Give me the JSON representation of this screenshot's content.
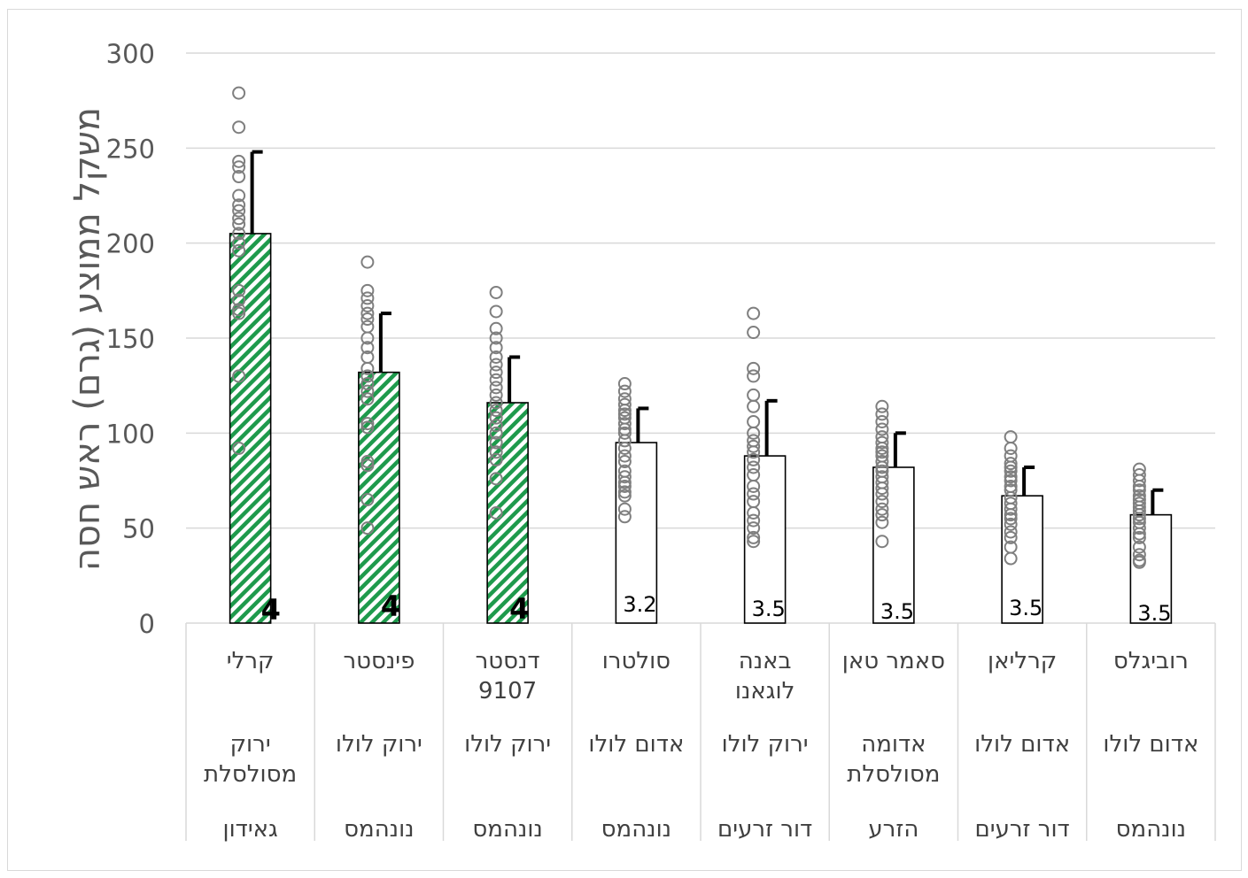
{
  "chart_data": {
    "type": "bar",
    "ylabel": "משקל ממוצע (גרם) ראש חסה",
    "xlabel": "",
    "ylim": [
      0,
      300
    ],
    "yticks": [
      0,
      50,
      100,
      150,
      200,
      250,
      300
    ],
    "grid": true,
    "categories": [
      {
        "name": [
          "קרלי"
        ],
        "type": [
          "ירוק",
          "מסולסלת"
        ],
        "source": "גאידון"
      },
      {
        "name": [
          "פינסטר"
        ],
        "type": [
          "ירוק לולו"
        ],
        "source": "נונהמס"
      },
      {
        "name": [
          "דנסטר",
          "9107"
        ],
        "type": [
          "ירוק לולו"
        ],
        "source": "נונהמס"
      },
      {
        "name": [
          "סולטרו"
        ],
        "type": [
          "אדום לולו"
        ],
        "source": "נונהמס"
      },
      {
        "name": [
          "באנה",
          "לוגאנו"
        ],
        "type": [
          "ירוק לולו"
        ],
        "source": "דור זרעים"
      },
      {
        "name": [
          "סאמר טאן"
        ],
        "type": [
          "אדומה",
          "מסולסלת"
        ],
        "source": "הזרע"
      },
      {
        "name": [
          "קרליאן"
        ],
        "type": [
          "אדום לולו"
        ],
        "source": "דור זרעים"
      },
      {
        "name": [
          "רוביגלס"
        ],
        "type": [
          "אדום לולו"
        ],
        "source": "נונהמס"
      }
    ],
    "series": [
      {
        "values": [
          205,
          132,
          116,
          95,
          88,
          82,
          67,
          57
        ],
        "error_plus": [
          43,
          31,
          24,
          18,
          29,
          18,
          15,
          13
        ]
      }
    ],
    "highlighted": [
      true,
      true,
      true,
      false,
      false,
      false,
      false,
      false
    ],
    "data_labels": [
      "4",
      "4",
      "4",
      "3.2",
      "3.5",
      "3.5",
      "3.5",
      "3.5"
    ],
    "points": [
      [
        279,
        261,
        243,
        240,
        235,
        225,
        220,
        217,
        213,
        210,
        205,
        200,
        196,
        175,
        170,
        165,
        163,
        130,
        92
      ],
      [
        190,
        175,
        171,
        167,
        163,
        160,
        156,
        150,
        145,
        140,
        134,
        130,
        126,
        122,
        118,
        105,
        103,
        85,
        83,
        65,
        50
      ],
      [
        174,
        164,
        155,
        150,
        145,
        140,
        136,
        132,
        128,
        124,
        120,
        116,
        112,
        108,
        104,
        100,
        95,
        90,
        86,
        76,
        58
      ],
      [
        126,
        122,
        118,
        115,
        112,
        110,
        108,
        105,
        102,
        100,
        96,
        92,
        88,
        85,
        80,
        77,
        74,
        72,
        69,
        67,
        60,
        56
      ],
      [
        163,
        153,
        134,
        130,
        120,
        114,
        106,
        100,
        96,
        93,
        90,
        86,
        82,
        78,
        72,
        68,
        64,
        58,
        54,
        50,
        45,
        43
      ],
      [
        114,
        110,
        106,
        102,
        98,
        95,
        92,
        90,
        88,
        85,
        82,
        80,
        77,
        74,
        71,
        68,
        64,
        60,
        57,
        53,
        43
      ],
      [
        98,
        92,
        88,
        84,
        82,
        80,
        77,
        75,
        72,
        70,
        66,
        63,
        60,
        57,
        55,
        52,
        48,
        45,
        40,
        34
      ],
      [
        81,
        78,
        75,
        72,
        70,
        67,
        65,
        63,
        61,
        59,
        57,
        55,
        53,
        50,
        47,
        45,
        40,
        36,
        33,
        32
      ]
    ]
  }
}
